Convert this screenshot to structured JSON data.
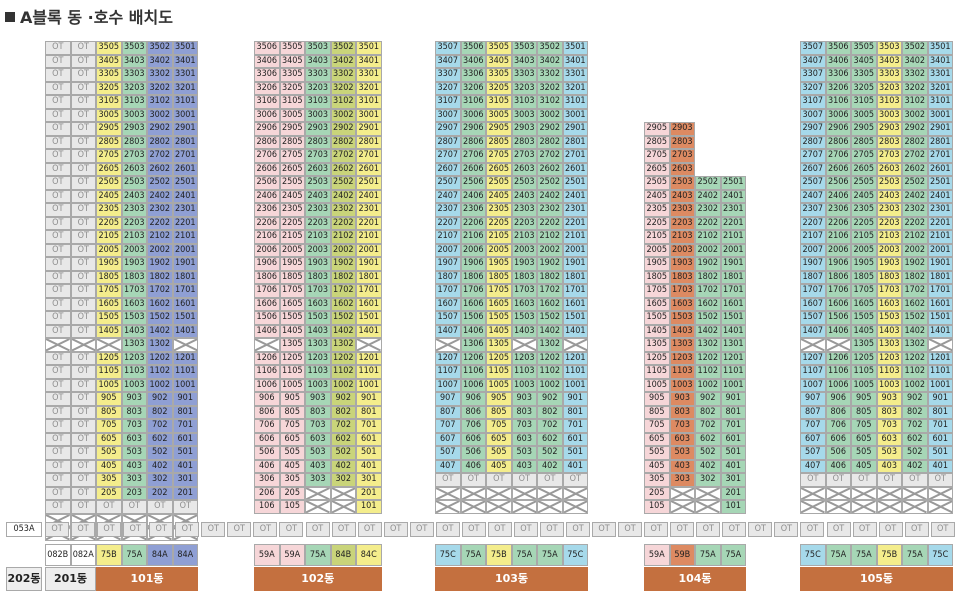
{
  "title": "A블록 동 ·호수 배치도",
  "colors": {
    "gray": "#e8e8e8",
    "pink": "#f6d6d8",
    "yellow": "#f4ed8c",
    "green": "#a6d6b6",
    "blue": "#8f9fd4",
    "cyan": "#a6d9ea",
    "orange": "#dd8a62",
    "olive": "#c9d47a",
    "building": "#c4703f"
  },
  "buildings": [
    {
      "name": "101동",
      "columns": [
        {
          "label": "OT",
          "line": "",
          "color": "gray"
        },
        {
          "label": "OT",
          "line": "",
          "color": "gray"
        },
        {
          "label": "",
          "line": "05",
          "color": "yellow"
        },
        {
          "label": "",
          "line": "03",
          "color": "green"
        },
        {
          "label": "",
          "line": "02",
          "color": "blue"
        },
        {
          "label": "",
          "line": "01",
          "color": "blue"
        }
      ],
      "column_types": [
        "082B",
        "082A",
        "75B",
        "75A",
        "84A",
        "84A"
      ],
      "floor_range": [
        2,
        35
      ],
      "overrides": {
        "13": [
          "X",
          "X",
          "X",
          "1303",
          "1302",
          "X"
        ]
      },
      "ot_row": true,
      "pilotis_rows": 2
    },
    {
      "name": "102동",
      "columns": [
        {
          "label": "",
          "line": "06",
          "color": "pink"
        },
        {
          "label": "",
          "line": "05",
          "color": "pink"
        },
        {
          "label": "",
          "line": "03",
          "color": "green"
        },
        {
          "label": "",
          "line": "02",
          "color": "olive"
        },
        {
          "label": "",
          "line": "01",
          "color": "yellow"
        }
      ],
      "column_types": [
        "59A",
        "59A",
        "75A",
        "84B",
        "84C"
      ],
      "floor_range": [
        1,
        35
      ],
      "overrides": {
        "13": [
          "X",
          "1305",
          "1303",
          "1302",
          "X"
        ],
        "1": [
          "106",
          "105",
          "X",
          "X",
          "101"
        ],
        "2": [
          "206",
          "205",
          "X",
          "X",
          "201"
        ]
      }
    },
    {
      "name": "103동",
      "columns": [
        {
          "label": "",
          "line": "07",
          "color": "cyan"
        },
        {
          "label": "",
          "line": "06",
          "color": "green"
        },
        {
          "label": "",
          "line": "05",
          "color": "yellow"
        },
        {
          "label": "",
          "line": "03",
          "color": "green"
        },
        {
          "label": "",
          "line": "02",
          "color": "green"
        },
        {
          "label": "",
          "line": "01",
          "color": "cyan"
        }
      ],
      "column_types": [
        "75C",
        "75A",
        "75B",
        "75A",
        "75A",
        "75C"
      ],
      "floor_range": [
        4,
        35
      ],
      "overrides": {
        "13": [
          "X",
          "1306",
          "1305",
          "X",
          "1302",
          "X"
        ]
      },
      "ot_row": true,
      "pilotis_rows": 2
    },
    {
      "name": "104동",
      "columns": [
        {
          "label": "",
          "line": "05",
          "color": "pink"
        },
        {
          "label": "",
          "line": "03",
          "color": "orange"
        },
        {
          "label": "",
          "line": "02",
          "color": "green"
        },
        {
          "label": "",
          "line": "01",
          "color": "green"
        }
      ],
      "column_types": [
        "59A",
        "59B",
        "75A",
        "75A"
      ],
      "floor_range": [
        1,
        29
      ],
      "col_top": [
        29,
        29,
        25,
        25
      ],
      "overrides": {
        "1": [
          "105",
          "X",
          "X",
          "101"
        ],
        "2": [
          "205",
          "X",
          "X",
          "201"
        ],
        "3": [
          "305",
          "303",
          "302",
          "301"
        ]
      }
    },
    {
      "name": "105동",
      "columns": [
        {
          "label": "",
          "line": "07",
          "color": "cyan"
        },
        {
          "label": "",
          "line": "06",
          "color": "green"
        },
        {
          "label": "",
          "line": "05",
          "color": "green"
        },
        {
          "label": "",
          "line": "03",
          "color": "yellow"
        },
        {
          "label": "",
          "line": "02",
          "color": "green"
        },
        {
          "label": "",
          "line": "01",
          "color": "cyan"
        }
      ],
      "column_types": [
        "75C",
        "75A",
        "75A",
        "75B",
        "75A",
        "75C"
      ],
      "floor_range": [
        4,
        35
      ],
      "overrides": {
        "13": [
          "X",
          "X",
          "1305",
          "1303",
          "1302",
          "X"
        ]
      },
      "ot_row": true,
      "pilotis_rows": 2
    }
  ],
  "bottom": {
    "label_053a": "053A",
    "ot_label": "OT",
    "dong_202": "202동",
    "dong_201": "201동"
  }
}
